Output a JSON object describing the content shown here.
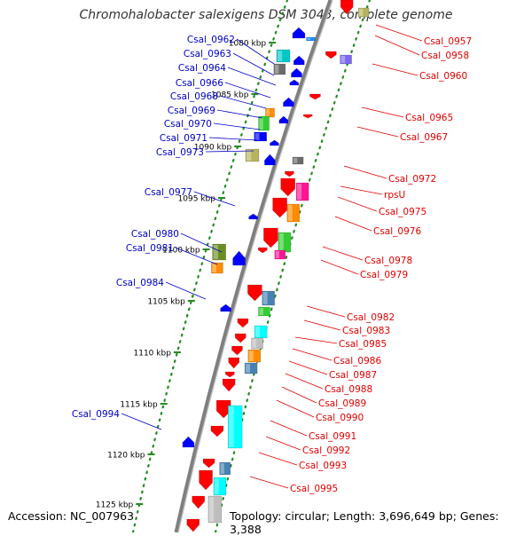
{
  "title": "Chromohalobacter salexigens DSM 3043, complete genome",
  "accession": "Accession: NC_007963",
  "topology": "Topology: circular; Length: 3,696,649 bp; Genes: 3,388",
  "colors": {
    "minus_label": "#0000c8",
    "plus_label": "#e00000",
    "backbone": "#7f7f7f",
    "tick": "#228b22"
  },
  "scale_ticks": [
    {
      "label": "1080 kbp"
    },
    {
      "label": "1085 kbp"
    },
    {
      "label": "1090 kbp"
    },
    {
      "label": "1095 kbp"
    },
    {
      "label": "1100 kbp"
    },
    {
      "label": "1105 kbp"
    },
    {
      "label": "1110 kbp"
    },
    {
      "label": "1115 kbp"
    },
    {
      "label": "1120 kbp"
    },
    {
      "label": "1125 kbp"
    }
  ],
  "minus_labels": [
    {
      "text": "Csal_0962"
    },
    {
      "text": "Csal_0963"
    },
    {
      "text": "Csal_0964"
    },
    {
      "text": "Csal_0966"
    },
    {
      "text": "Csal_0968"
    },
    {
      "text": "Csal_0969"
    },
    {
      "text": "Csal_0970"
    },
    {
      "text": "Csal_0971"
    },
    {
      "text": "Csal_0973"
    },
    {
      "text": "Csal_0977"
    },
    {
      "text": "Csal_0980"
    },
    {
      "text": "Csal_0981"
    },
    {
      "text": "Csal_0984"
    },
    {
      "text": "Csal_0994"
    }
  ],
  "plus_labels": [
    {
      "text": "Csal_0957"
    },
    {
      "text": "Csal_0958"
    },
    {
      "text": "Csal_0960"
    },
    {
      "text": "Csal_0965"
    },
    {
      "text": "Csal_0967"
    },
    {
      "text": "Csal_0972"
    },
    {
      "text": "rpsU"
    },
    {
      "text": "Csal_0975"
    },
    {
      "text": "Csal_0976"
    },
    {
      "text": "Csal_0978"
    },
    {
      "text": "Csal_0979"
    },
    {
      "text": "Csal_0982"
    },
    {
      "text": "Csal_0983"
    },
    {
      "text": "Csal_0985"
    },
    {
      "text": "Csal_0986"
    },
    {
      "text": "Csal_0987"
    },
    {
      "text": "Csal_0988"
    },
    {
      "text": "Csal_0989"
    },
    {
      "text": "Csal_0990"
    },
    {
      "text": "Csal_0991"
    },
    {
      "text": "Csal_0992"
    },
    {
      "text": "Csal_0993"
    },
    {
      "text": "Csal_0995"
    }
  ]
}
